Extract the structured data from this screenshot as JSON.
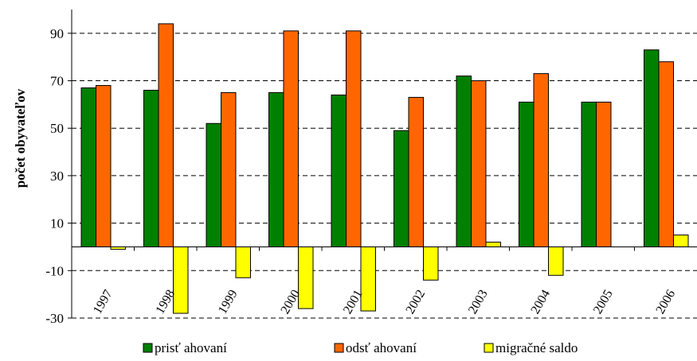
{
  "chart_data": {
    "type": "bar",
    "title": "",
    "xlabel": "",
    "ylabel": "počet obyvateľov",
    "ylim": [
      -30,
      100
    ],
    "yticks": [
      -30,
      -10,
      10,
      30,
      50,
      70,
      90
    ],
    "grid": true,
    "legend_position": "bottom",
    "categories": [
      "1997",
      "1998",
      "1999",
      "2000",
      "2001",
      "2002",
      "2003",
      "2004",
      "2005",
      "2006"
    ],
    "series": [
      {
        "name": "prisť ahovaní",
        "color": "#008000",
        "values": [
          67,
          66,
          52,
          65,
          64,
          49,
          72,
          61,
          61,
          83
        ]
      },
      {
        "name": "odsť ahovaní",
        "color": "#FF6600",
        "values": [
          68,
          94,
          65,
          91,
          91,
          63,
          70,
          73,
          61,
          78
        ]
      },
      {
        "name": "migračné saldo",
        "color": "#FFFF00",
        "values": [
          -1,
          -28,
          -13,
          -26,
          -27,
          -14,
          2,
          -12,
          0,
          5
        ]
      }
    ]
  }
}
